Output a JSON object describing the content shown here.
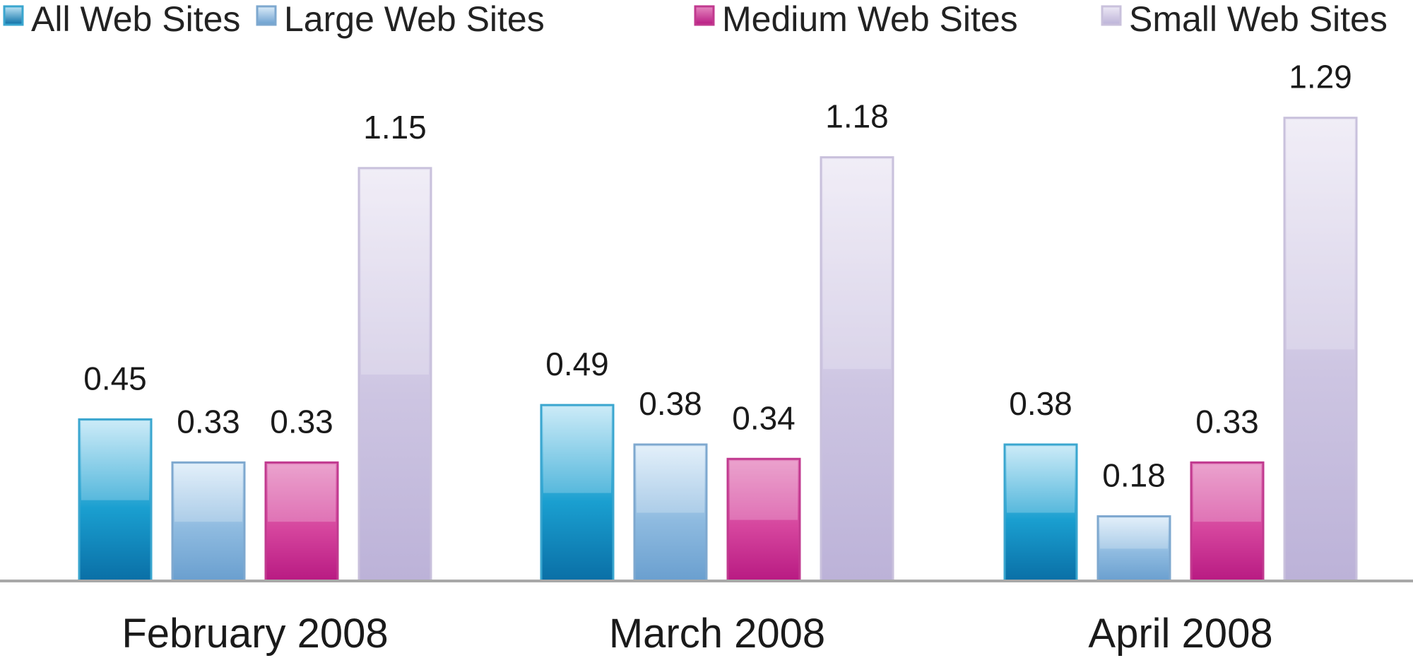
{
  "chart_data": {
    "type": "bar",
    "categories": [
      "February 2008",
      "March 2008",
      "April 2008"
    ],
    "series": [
      {
        "name": "All Web Sites",
        "values": [
          0.45,
          0.49,
          0.38
        ],
        "color": "#1a9fd0",
        "color_dark": "#0a6fa6",
        "color_light": "#bfe6f6",
        "border": "#3aa6cf"
      },
      {
        "name": "Large Web Sites",
        "values": [
          0.33,
          0.38,
          0.18
        ],
        "color": "#8fbbe0",
        "color_dark": "#6a9fcf",
        "color_light": "#dcecf9",
        "border": "#7ea8cf"
      },
      {
        "name": "Medium Web Sites",
        "values": [
          0.33,
          0.34,
          0.33
        ],
        "color": "#d6469e",
        "color_dark": "#b81a82",
        "color_light": "#e589c0",
        "border": "#c13a8f"
      },
      {
        "name": "Small Web Sites",
        "values": [
          1.15,
          1.18,
          1.29
        ],
        "color": "#cdc5e2",
        "color_dark": "#bcb2d8",
        "color_light": "#ede9f5",
        "border": "#c9c1dc"
      }
    ],
    "title": "",
    "xlabel": "",
    "ylabel": "",
    "ylim": [
      0,
      1.4
    ],
    "grid": false,
    "legend_position": "top",
    "data_labels": true
  }
}
